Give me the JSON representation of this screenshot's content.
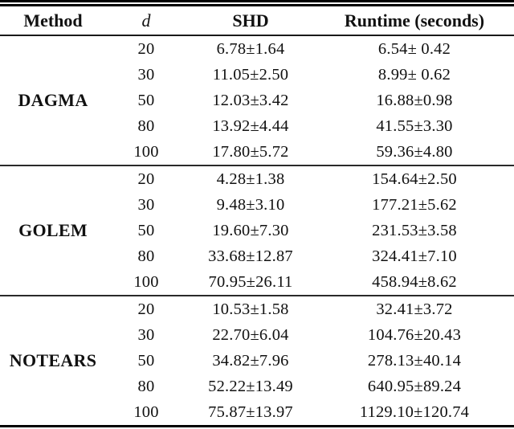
{
  "table": {
    "headers": {
      "method": "Method",
      "d": "d",
      "shd": "SHD",
      "runtime": "Runtime (seconds)"
    },
    "groups": [
      {
        "method": "DAGMA",
        "rows": [
          {
            "d": "20",
            "shd": "6.78±1.64",
            "runtime": "6.54± 0.42"
          },
          {
            "d": "30",
            "shd": "11.05±2.50",
            "runtime": "8.99± 0.62"
          },
          {
            "d": "50",
            "shd": "12.03±3.42",
            "runtime": "16.88±0.98"
          },
          {
            "d": "80",
            "shd": "13.92±4.44",
            "runtime": "41.55±3.30"
          },
          {
            "d": "100",
            "shd": "17.80±5.72",
            "runtime": "59.36±4.80"
          }
        ]
      },
      {
        "method": "GOLEM",
        "rows": [
          {
            "d": "20",
            "shd": "4.28±1.38",
            "runtime": "154.64±2.50"
          },
          {
            "d": "30",
            "shd": "9.48±3.10",
            "runtime": "177.21±5.62"
          },
          {
            "d": "50",
            "shd": "19.60±7.30",
            "runtime": "231.53±3.58"
          },
          {
            "d": "80",
            "shd": "33.68±12.87",
            "runtime": "324.41±7.10"
          },
          {
            "d": "100",
            "shd": "70.95±26.11",
            "runtime": "458.94±8.62"
          }
        ]
      },
      {
        "method": "NOTEARS",
        "rows": [
          {
            "d": "20",
            "shd": "10.53±1.58",
            "runtime": "32.41±3.72"
          },
          {
            "d": "30",
            "shd": "22.70±6.04",
            "runtime": "104.76±20.43"
          },
          {
            "d": "50",
            "shd": "34.82±7.96",
            "runtime": "278.13±40.14"
          },
          {
            "d": "80",
            "shd": "52.22±13.49",
            "runtime": "640.95±89.24"
          },
          {
            "d": "100",
            "shd": "75.87±13.97",
            "runtime": "1129.10±120.74"
          }
        ]
      }
    ]
  }
}
